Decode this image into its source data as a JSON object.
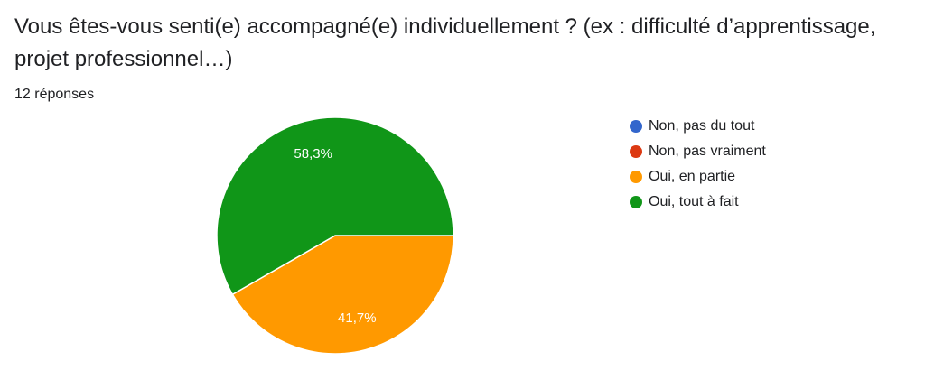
{
  "question": {
    "title": "Vous êtes-vous senti(e) accompagné(e) individuellement ? (ex : difficulté d’apprentissage, projet professionnel…)",
    "response_count": "12 réponses"
  },
  "chart_data": {
    "type": "pie",
    "legend_position": "right",
    "categories": [
      "Non, pas du tout",
      "Non, pas vraiment",
      "Oui, en partie",
      "Oui, tout à fait"
    ],
    "values": [
      0,
      0,
      41.7,
      58.3
    ],
    "value_labels": [
      "",
      "",
      "41,7%",
      "58,3%"
    ],
    "colors": [
      "#3366cc",
      "#dc3912",
      "#ff9900",
      "#109618"
    ]
  }
}
